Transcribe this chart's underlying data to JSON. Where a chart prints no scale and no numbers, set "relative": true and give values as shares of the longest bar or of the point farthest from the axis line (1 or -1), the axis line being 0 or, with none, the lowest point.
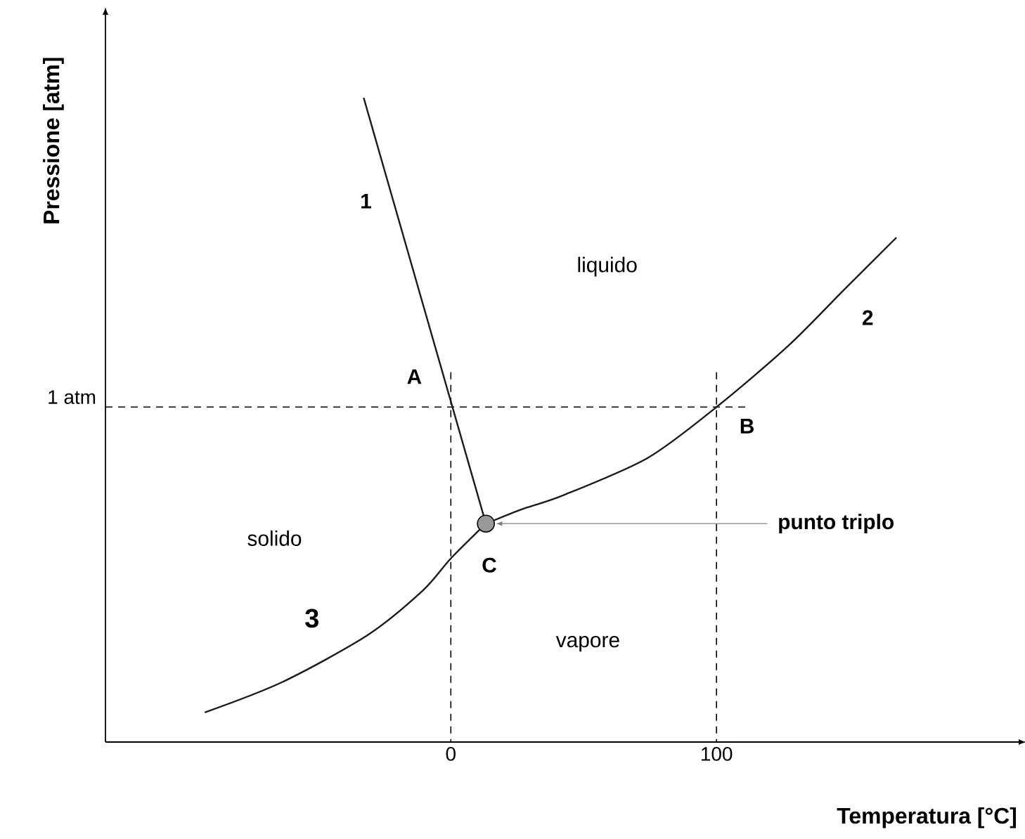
{
  "chart_data": {
    "type": "line",
    "xlabel": "Temperatura [°C]",
    "ylabel": "Pressione [atm]",
    "relative": true,
    "xlim": [
      -130,
      214
    ],
    "xticks": [
      0,
      100
    ],
    "grid": false,
    "line_style": "solid",
    "series": [
      {
        "color": "#1a1a1a",
        "x": [
          -32.8,
          13.2
        ],
        "values": [
          1.0,
          0.339
        ]
      },
      {
        "color": "#1a1a1a",
        "x": [
          13.2,
          26.5,
          42.3,
          74.1,
          100,
          127,
          148,
          167.7
        ],
        "values": [
          0.339,
          0.361,
          0.383,
          0.441,
          0.52,
          0.615,
          0.702,
          0.783
        ]
      },
      {
        "color": "#1a1a1a",
        "x": [
          -92.6,
          -63.5,
          -31.7,
          -10.6,
          0,
          13.2
        ],
        "values": [
          0.046,
          0.093,
          0.165,
          0.235,
          0.285,
          0.339
        ]
      },
      {
        "type": "scatter",
        "color": "#999999",
        "x": [
          13.2
        ],
        "values": [
          0.339
        ]
      }
    ],
    "ref_lines": [
      {
        "axis": "y",
        "value": 0.52,
        "label": "1 atm",
        "line_style": "dashed"
      },
      {
        "axis": "x",
        "value": 0,
        "line_style": "dashed"
      },
      {
        "axis": "x",
        "value": 100,
        "line_style": "dashed"
      }
    ],
    "annotations": [
      "1",
      "2",
      "3",
      "A",
      "B",
      "C",
      "punto triplo",
      "liquido",
      "solido",
      "vapore"
    ]
  }
}
